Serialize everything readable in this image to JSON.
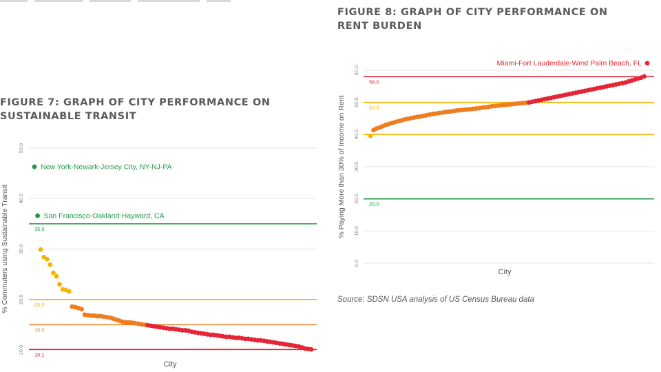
{
  "figures": {
    "fig7_title": "FIGURE 7: GRAPH OF CITY PERFORMANCE ON SUSTAINABLE TRANSIT",
    "fig8_title": "FIGURE 8: GRAPH OF CITY PERFORMANCE ON RENT BURDEN",
    "source": "Source: SDSN USA analysis of US Census Bureau data"
  },
  "colors": {
    "green": "#1e9a45",
    "yellow": "#f5b400",
    "orange": "#ee7d1f",
    "red": "#e52535",
    "grid": "#e4e4e4",
    "axis_text": "#888888"
  },
  "chart_data": [
    {
      "type": "scatter",
      "title": "FIGURE 7: GRAPH OF CITY PERFORMANCE ON SUSTAINABLE TRANSIT",
      "xlabel": "City",
      "ylabel": "% Commuters using Sustainable Transit",
      "ylim": [
        10,
        50
      ],
      "yticks": [
        "10.0",
        "20.0",
        "30.0",
        "40.0",
        "50.0"
      ],
      "grid": true,
      "thresholds": [
        {
          "value": 35.0,
          "label": "35.0",
          "color": "#1e9a45"
        },
        {
          "value": 20.0,
          "label": "20.0",
          "color": "#f5b400"
        },
        {
          "value": 15.0,
          "label": "15.0",
          "color": "#ee7d1f"
        },
        {
          "value": 10.1,
          "label": "10.1",
          "color": "#e52535"
        }
      ],
      "annotations": [
        {
          "text": "New York-Newark-Jersey City, NY-NJ-PA",
          "index": 0
        },
        {
          "text": "San Francisco-Oakland-Hayward, CA",
          "index": 1
        }
      ],
      "values": [
        46.3,
        36.6,
        29.9,
        28.4,
        28.0,
        26.9,
        25.3,
        24.6,
        23.0,
        22.0,
        21.9,
        21.6,
        18.6,
        18.5,
        18.3,
        18.1,
        17.0,
        16.9,
        16.8,
        16.8,
        16.7,
        16.7,
        16.6,
        16.5,
        16.4,
        16.2,
        16.0,
        15.8,
        15.6,
        15.5,
        15.5,
        15.4,
        15.3,
        15.2,
        15.1,
        15.0,
        14.9,
        14.8,
        14.7,
        14.6,
        14.5,
        14.4,
        14.3,
        14.2,
        14.2,
        14.1,
        14.0,
        13.9,
        13.9,
        13.8,
        13.6,
        13.5,
        13.4,
        13.3,
        13.2,
        13.1,
        13.0,
        13.0,
        12.9,
        12.8,
        12.7,
        12.6,
        12.6,
        12.5,
        12.4,
        12.4,
        12.3,
        12.2,
        12.2,
        12.1,
        12.0,
        11.9,
        11.9,
        11.8,
        11.7,
        11.6,
        11.5,
        11.4,
        11.3,
        11.2,
        11.1,
        11.0,
        10.9,
        10.8,
        10.7,
        10.5,
        10.3,
        10.2,
        10.1
      ]
    },
    {
      "type": "scatter",
      "title": "FIGURE 8: GRAPH OF CITY PERFORMANCE ON RENT BURDEN",
      "xlabel": "City",
      "ylabel": "% Paying More than 30% of Income on Rent",
      "ylim": [
        0,
        60
      ],
      "yticks": [
        "0.0",
        "10.0",
        "20.0",
        "30.0",
        "40.0",
        "50.0",
        "60.0"
      ],
      "grid": true,
      "thresholds": [
        {
          "value": 58.0,
          "label": "58.0",
          "color": "#e52535"
        },
        {
          "value": 50.0,
          "label": "50.0",
          "color": "#f5b400"
        },
        {
          "value": 40.0,
          "label": "",
          "color": "#f5b400"
        },
        {
          "value": 20.0,
          "label": "20.0",
          "color": "#1e9a45"
        }
      ],
      "annotations": [
        {
          "text": "Miami-Fort Lauderdale-West Palm Beach, FL",
          "index": 89
        }
      ],
      "values": [
        39.6,
        41.4,
        41.9,
        42.2,
        42.6,
        43.0,
        43.3,
        43.6,
        43.9,
        44.2,
        44.4,
        44.7,
        44.9,
        45.1,
        45.3,
        45.5,
        45.6,
        45.8,
        46.0,
        46.2,
        46.4,
        46.5,
        46.7,
        46.8,
        47.0,
        47.1,
        47.2,
        47.4,
        47.5,
        47.6,
        47.7,
        47.8,
        47.9,
        48.0,
        48.1,
        48.2,
        48.4,
        48.5,
        48.6,
        48.8,
        48.9,
        49.0,
        49.1,
        49.2,
        49.3,
        49.4,
        49.5,
        49.6,
        49.7,
        49.8,
        49.9,
        50.0,
        50.2,
        50.4,
        50.6,
        50.8,
        51.0,
        51.2,
        51.4,
        51.6,
        51.8,
        52.0,
        52.2,
        52.4,
        52.6,
        52.8,
        53.0,
        53.2,
        53.4,
        53.6,
        53.8,
        54.0,
        54.2,
        54.4,
        54.6,
        54.8,
        55.0,
        55.2,
        55.4,
        55.6,
        55.8,
        56.0,
        56.2,
        56.5,
        56.8,
        57.1,
        57.4,
        57.7,
        58.1,
        62.2
      ]
    }
  ]
}
